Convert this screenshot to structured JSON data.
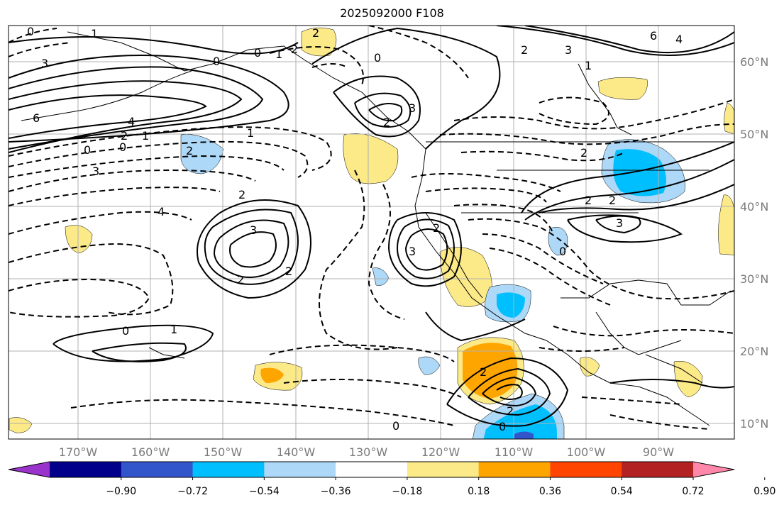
{
  "title": "2025092000 F108",
  "lon_ticks": [
    "170°W",
    "160°W",
    "150°W",
    "140°W",
    "130°W",
    "120°W",
    "110°W",
    "100°W",
    "90°W"
  ],
  "lat_ticks": [
    "60°N",
    "50°N",
    "40°N",
    "30°N",
    "20°N",
    "10°N"
  ],
  "colorbar": {
    "ticks": [
      "−0.90",
      "−0.72",
      "−0.54",
      "−0.36",
      "−0.18",
      "0.18",
      "0.36",
      "0.54",
      "0.72",
      "0.90"
    ],
    "colors": [
      "#9933cc",
      "#00008b",
      "#3355cc",
      "#00bfff",
      "#add8f7",
      "#ffffff",
      "#fce987",
      "#ffa500",
      "#ff4500",
      "#b22222",
      "#ff88aa"
    ]
  },
  "contour_labels": [
    {
      "text": "0"
    },
    {
      "text": "1"
    },
    {
      "text": "3"
    },
    {
      "text": "6"
    },
    {
      "text": "4"
    },
    {
      "text": "2"
    },
    {
      "text": "1"
    },
    {
      "text": "0"
    },
    {
      "text": "0"
    },
    {
      "text": "3"
    },
    {
      "text": "2"
    },
    {
      "text": "4"
    },
    {
      "text": "2"
    },
    {
      "text": "1"
    },
    {
      "text": "3"
    },
    {
      "text": "2"
    },
    {
      "text": "2"
    },
    {
      "text": "0"
    },
    {
      "text": "1"
    },
    {
      "text": "3"
    },
    {
      "text": "2"
    },
    {
      "text": "2"
    },
    {
      "text": "0"
    },
    {
      "text": "1"
    },
    {
      "text": "2"
    },
    {
      "text": "0"
    },
    {
      "text": "0"
    },
    {
      "text": "3"
    },
    {
      "text": "3"
    },
    {
      "text": "2"
    },
    {
      "text": "6"
    },
    {
      "text": "4"
    },
    {
      "text": "2"
    },
    {
      "text": "1"
    },
    {
      "text": "2"
    },
    {
      "text": "2"
    },
    {
      "text": "2"
    },
    {
      "text": "3"
    },
    {
      "text": "0"
    },
    {
      "text": "2"
    },
    {
      "text": "2"
    },
    {
      "text": "0"
    },
    {
      "text": "0"
    }
  ]
}
